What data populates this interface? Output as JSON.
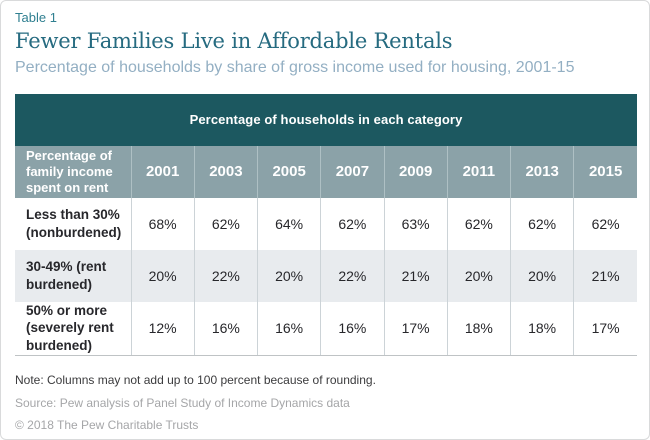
{
  "header": {
    "table_label": "Table 1",
    "title": "Fewer Families Live in Affordable Rentals",
    "subtitle": "Percentage of households by share of gross income used for housing, 2001-15"
  },
  "table": {
    "span_header": "Percentage of households in each category",
    "row_header": "Percentage of family income spent on rent",
    "years": [
      "2001",
      "2003",
      "2005",
      "2007",
      "2009",
      "2011",
      "2013",
      "2015"
    ],
    "rows": [
      {
        "label": "Less than 30% (nonburdened)",
        "values": [
          "68%",
          "62%",
          "64%",
          "62%",
          "63%",
          "62%",
          "62%",
          "62%"
        ]
      },
      {
        "label": "30-49% (rent burdened)",
        "values": [
          "20%",
          "22%",
          "20%",
          "22%",
          "21%",
          "20%",
          "20%",
          "21%"
        ]
      },
      {
        "label": "50% or more (severely rent burdened)",
        "values": [
          "12%",
          "16%",
          "16%",
          "16%",
          "17%",
          "18%",
          "18%",
          "17%"
        ]
      }
    ]
  },
  "footer": {
    "note": "Note: Columns may not add up to 100 percent because of rounding.",
    "source": "Source: Pew analysis of Panel Study of Income Dynamics data",
    "copyright": "© 2018 The Pew Charitable Trusts"
  },
  "colors": {
    "header_band": "#1c5860",
    "subheader_band": "#8ba2a8",
    "alt_row": "#e8ebee",
    "accent_teal": "#2f7f90",
    "title_teal": "#266b80",
    "subtitle_blue": "#93afc3"
  },
  "chart_data": {
    "type": "table",
    "title": "Fewer Families Live in Affordable Rentals",
    "subtitle": "Percentage of households by share of gross income used for housing, 2001-15",
    "column_group_header": "Percentage of households in each category",
    "row_header": "Percentage of family income spent on rent",
    "categories": [
      "2001",
      "2003",
      "2005",
      "2007",
      "2009",
      "2011",
      "2013",
      "2015"
    ],
    "series": [
      {
        "name": "Less than 30% (nonburdened)",
        "values": [
          68,
          62,
          64,
          62,
          63,
          62,
          62,
          62
        ]
      },
      {
        "name": "30-49% (rent burdened)",
        "values": [
          20,
          22,
          20,
          22,
          21,
          20,
          20,
          21
        ]
      },
      {
        "name": "50% or more (severely rent burdened)",
        "values": [
          12,
          16,
          16,
          16,
          17,
          18,
          18,
          17
        ]
      }
    ],
    "units": "percent",
    "note": "Note: Columns may not add up to 100 percent because of rounding.",
    "source": "Source: Pew analysis of Panel Study of Income Dynamics data"
  }
}
